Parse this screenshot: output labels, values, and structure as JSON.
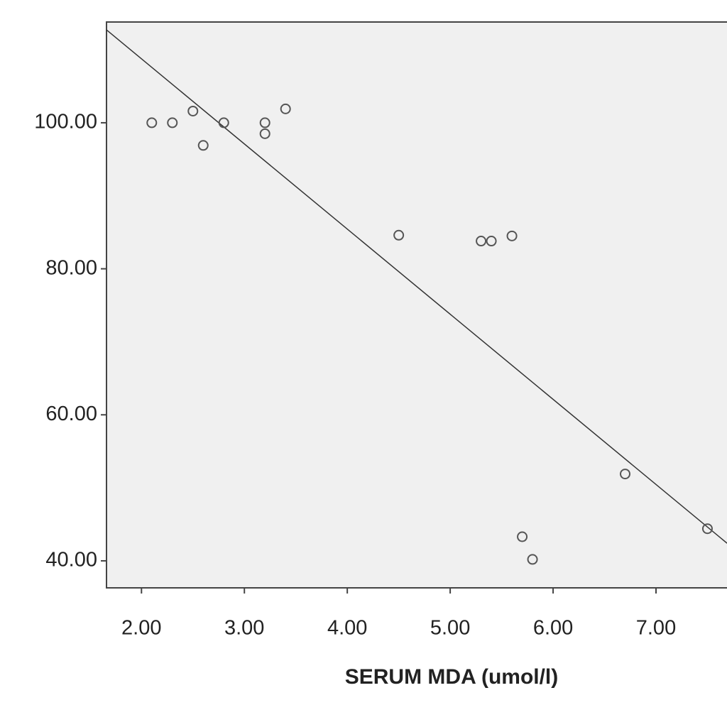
{
  "chart_data": {
    "type": "scatter",
    "x_label": "SERUM MDA (umol/l)",
    "x": [
      2.1,
      2.3,
      2.5,
      2.6,
      2.8,
      3.2,
      3.2,
      3.4,
      4.5,
      5.3,
      5.4,
      5.6,
      5.7,
      5.8,
      6.7,
      7.5
    ],
    "values": [
      100,
      100,
      101.6,
      96.9,
      100,
      100,
      98.5,
      101.9,
      84.6,
      83.8,
      83.8,
      84.5,
      43.3,
      40.2,
      51.9,
      44.4
    ],
    "marker_color": "#555555",
    "trendline": {
      "slope": -11.66,
      "intercept": 132.08,
      "color": "#333333"
    },
    "xlim": [
      1.66,
      7.69
    ],
    "ylim": [
      36.3,
      113.8
    ],
    "xticks": [
      {
        "value": 2,
        "label": "2.00"
      },
      {
        "value": 3,
        "label": "3.00"
      },
      {
        "value": 4,
        "label": "4.00"
      },
      {
        "value": 5,
        "label": "5.00"
      },
      {
        "value": 6,
        "label": "6.00"
      },
      {
        "value": 7,
        "label": "7.00"
      }
    ],
    "yticks": [
      {
        "value": 40,
        "label": "40.00"
      },
      {
        "value": 60,
        "label": "60.00"
      },
      {
        "value": 80,
        "label": "80.00"
      },
      {
        "value": 100,
        "label": "100.00"
      }
    ],
    "background": "#f0f0f0"
  }
}
